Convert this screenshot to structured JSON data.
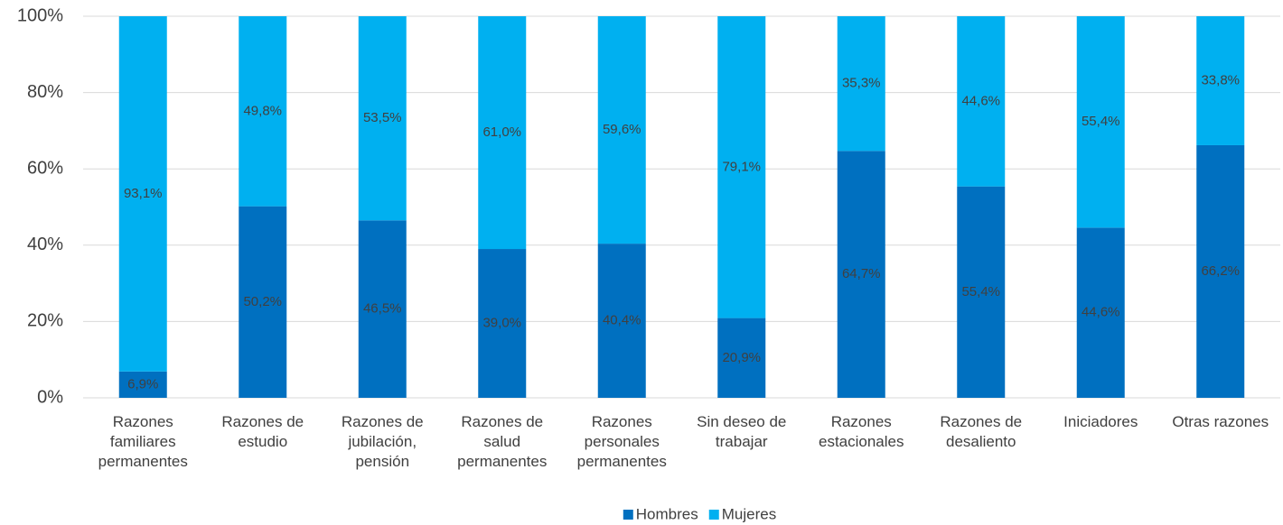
{
  "chart_data": {
    "type": "stacked_bar",
    "categories": [
      "Razones familiares permanentes",
      "Razones de estudio",
      "Razones de jubilación, pensión",
      "Razones de salud permanentes",
      "Razones personales permanentes",
      "Sin deseo de trabajar",
      "Razones estacionales",
      "Razones de desaliento",
      "Iniciadores",
      "Otras razones"
    ],
    "series": [
      {
        "name": "Hombres",
        "color": "#0070c0",
        "values": [
          6.9,
          50.2,
          46.5,
          39.0,
          40.4,
          20.9,
          64.7,
          55.4,
          44.6,
          66.2
        ],
        "value_labels": [
          "6,9%",
          "50,2%",
          "46,5%",
          "39,0%",
          "40,4%",
          "20,9%",
          "64,7%",
          "55,4%",
          "44,6%",
          "66,2%"
        ]
      },
      {
        "name": "Mujeres",
        "color": "#00b0f0",
        "values": [
          93.1,
          49.8,
          53.5,
          61.0,
          59.6,
          79.1,
          35.3,
          44.6,
          55.4,
          33.8
        ],
        "value_labels": [
          "93,1%",
          "49,8%",
          "53,5%",
          "61,0%",
          "59,6%",
          "79,1%",
          "35,3%",
          "44,6%",
          "55,4%",
          "33,8%"
        ]
      }
    ],
    "ylim": [
      0,
      100
    ],
    "yticks": [
      {
        "value": 0,
        "label": "0%"
      },
      {
        "value": 20,
        "label": "20%"
      },
      {
        "value": 40,
        "label": "40%"
      },
      {
        "value": 60,
        "label": "60%"
      },
      {
        "value": 80,
        "label": "80%"
      },
      {
        "value": 100,
        "label": "100%"
      }
    ],
    "grid": true,
    "legend": "bottom"
  }
}
